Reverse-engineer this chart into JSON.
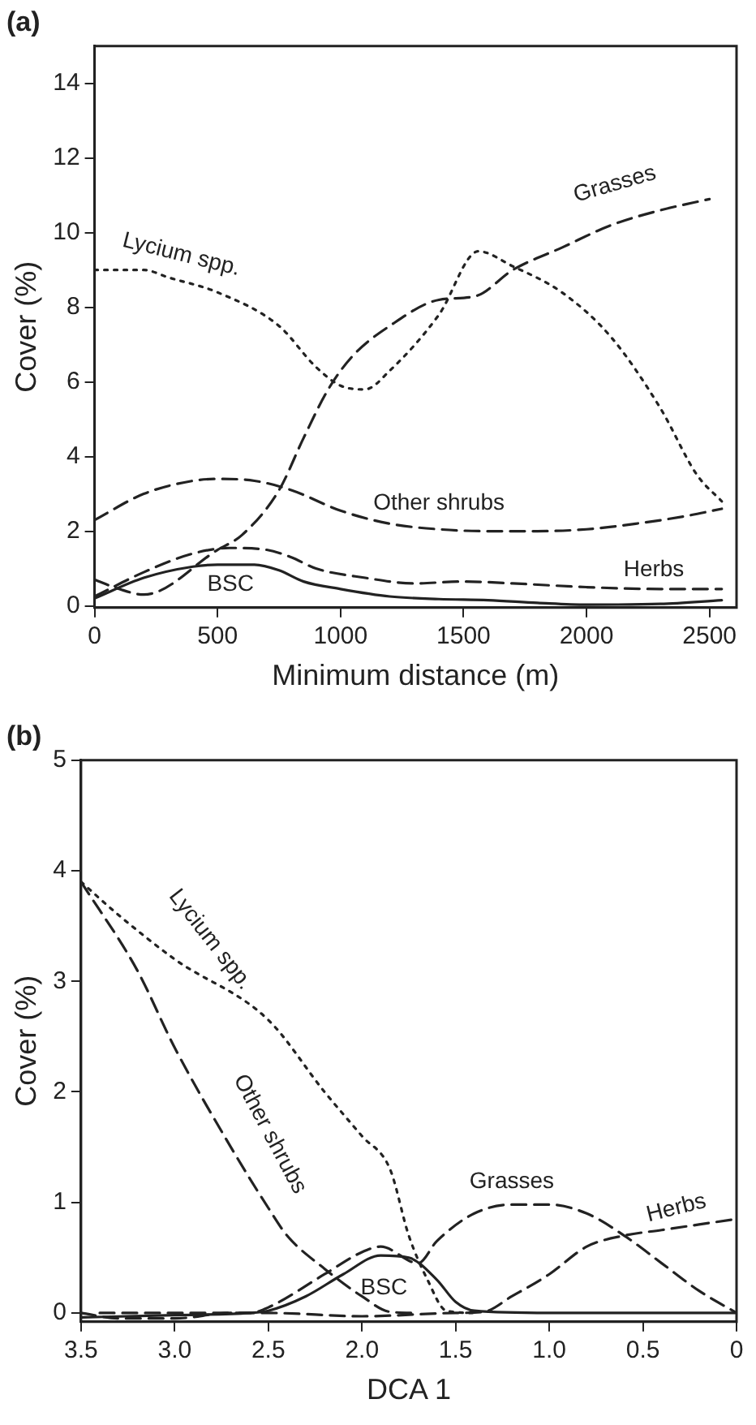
{
  "chart_data": [
    {
      "type": "line",
      "title": "(a)",
      "xlabel": "Minimum distance (m)",
      "ylabel": "Cover (%)",
      "xlim": [
        0,
        2610
      ],
      "ylim": [
        -0.05,
        15
      ],
      "xticks": [
        0,
        500,
        1000,
        1500,
        2000,
        2500
      ],
      "yticks": [
        0,
        2,
        4,
        6,
        8,
        10,
        12,
        14
      ],
      "grid": false,
      "legend": false,
      "marker": "none",
      "series": [
        {
          "name": "Lycium spp.",
          "color": "#222222",
          "line_style": "dotted",
          "x": [
            0,
            200,
            300,
            500,
            750,
            900,
            1000,
            1100,
            1200,
            1400,
            1560,
            1700,
            1900,
            2100,
            2300,
            2450,
            2550
          ],
          "values": [
            9.0,
            9.0,
            8.8,
            8.4,
            7.5,
            6.4,
            5.9,
            5.8,
            6.3,
            7.8,
            9.5,
            9.1,
            8.4,
            7.2,
            5.3,
            3.5,
            2.8
          ]
        },
        {
          "name": "Grasses",
          "color": "#222222",
          "line_style": "dashed",
          "x": [
            0,
            100,
            200,
            500,
            600,
            750,
            850,
            950,
            1050,
            1200,
            1400,
            1550,
            1700,
            1900,
            2100,
            2300,
            2500
          ],
          "values": [
            0.7,
            0.45,
            0.3,
            1.5,
            1.9,
            3.1,
            4.5,
            5.8,
            6.7,
            7.5,
            8.2,
            8.3,
            9.0,
            9.6,
            10.2,
            10.6,
            10.9
          ]
        },
        {
          "name": "Other shrubs",
          "color": "#222222",
          "line_style": "dashed",
          "x": [
            0,
            200,
            400,
            500,
            650,
            800,
            1000,
            1200,
            1400,
            1600,
            1800,
            2000,
            2200,
            2400,
            2550
          ],
          "values": [
            2.3,
            3.0,
            3.35,
            3.4,
            3.35,
            3.1,
            2.55,
            2.2,
            2.05,
            2.0,
            2.0,
            2.05,
            2.2,
            2.4,
            2.6
          ]
        },
        {
          "name": "Herbs",
          "color": "#222222",
          "line_style": "dashed",
          "x": [
            0,
            200,
            400,
            550,
            700,
            800,
            900,
            1100,
            1300,
            1500,
            1700,
            2000,
            2300,
            2550
          ],
          "values": [
            0.25,
            0.9,
            1.4,
            1.55,
            1.5,
            1.3,
            1.0,
            0.75,
            0.6,
            0.65,
            0.6,
            0.5,
            0.45,
            0.45
          ]
        },
        {
          "name": "BSC",
          "color": "#222222",
          "line_style": "solid",
          "x": [
            0,
            200,
            400,
            500,
            650,
            750,
            850,
            1000,
            1200,
            1400,
            1600,
            1800,
            2000,
            2300,
            2550
          ],
          "values": [
            0.2,
            0.75,
            1.05,
            1.1,
            1.1,
            0.95,
            0.65,
            0.45,
            0.25,
            0.18,
            0.15,
            0.08,
            0.03,
            0.05,
            0.15
          ]
        }
      ]
    },
    {
      "type": "line",
      "title": "(b)",
      "xlabel": "DCA 1",
      "ylabel": "Cover (%)",
      "xlim": [
        3.5,
        0
      ],
      "ylim": [
        -0.08,
        5
      ],
      "xticks": [
        3.5,
        {
          "value": 3,
          "label": "3.0"
        },
        2.5,
        {
          "value": 2,
          "label": "2.0"
        },
        1.5,
        {
          "value": 1,
          "label": "1.0"
        },
        0.5,
        0
      ],
      "yticks": [
        0,
        1,
        2,
        3,
        4,
        5
      ],
      "grid": false,
      "legend": false,
      "marker": "none",
      "series": [
        {
          "name": "Lycium spp.",
          "color": "#222222",
          "line_style": "dotted",
          "x": [
            3.5,
            3.3,
            3.0,
            2.5,
            2.2,
            2.0,
            1.85,
            1.75,
            1.65,
            1.55,
            1.4
          ],
          "values": [
            3.9,
            3.6,
            3.2,
            2.65,
            2.0,
            1.6,
            1.3,
            0.7,
            0.3,
            0.02,
            0
          ]
        },
        {
          "name": "Other shrubs",
          "color": "#222222",
          "line_style": "dashed",
          "x": [
            3.5,
            3.2,
            3.0,
            2.7,
            2.5,
            2.4,
            2.2,
            2.0,
            1.85,
            1.7
          ],
          "values": [
            3.9,
            3.1,
            2.4,
            1.5,
            0.95,
            0.7,
            0.4,
            0.15,
            0.01,
            0
          ]
        },
        {
          "name": "Grasses",
          "color": "#222222",
          "line_style": "dashed",
          "x": [
            3.4,
            2.6,
            2.5,
            2.2,
            2.0,
            1.9,
            1.7,
            1.6,
            1.4,
            1.2,
            1.0,
            0.8,
            0.6,
            0.4,
            0.2,
            0
          ],
          "values": [
            0,
            0,
            0.05,
            0.35,
            0.55,
            0.6,
            0.45,
            0.65,
            0.9,
            0.98,
            0.98,
            0.9,
            0.7,
            0.45,
            0.2,
            0
          ]
        },
        {
          "name": "BSC",
          "color": "#222222",
          "line_style": "solid",
          "x": [
            3.5,
            3.0,
            2.6,
            2.5,
            2.3,
            2.1,
            1.9,
            1.75,
            1.6,
            1.5,
            1.4,
            1.0,
            0
          ],
          "values": [
            -0.04,
            -0.02,
            0,
            0.02,
            0.15,
            0.35,
            0.52,
            0.5,
            0.3,
            0.1,
            0.02,
            0,
            0
          ]
        },
        {
          "name": "Herbs",
          "color": "#222222",
          "line_style": "dashed",
          "x": [
            3.5,
            3.3,
            3.0,
            2.7,
            2.5,
            2.0,
            1.5,
            1.35,
            1.2,
            1.0,
            0.8,
            0.6,
            0.4,
            0.2,
            0
          ],
          "values": [
            0,
            -0.05,
            -0.05,
            0,
            0,
            -0.03,
            0,
            0.01,
            0.15,
            0.35,
            0.6,
            0.7,
            0.75,
            0.8,
            0.85
          ]
        }
      ]
    }
  ]
}
